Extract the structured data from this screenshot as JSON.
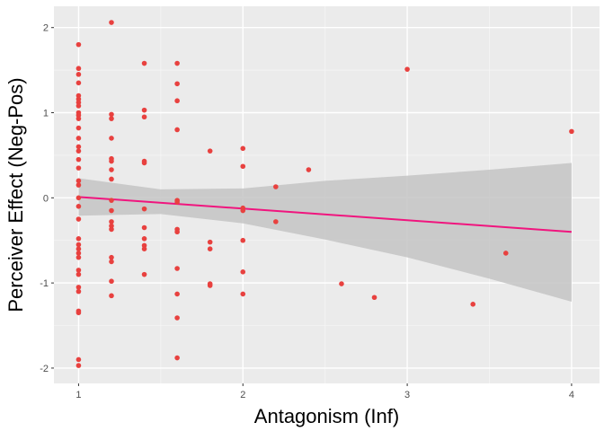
{
  "chart_data": {
    "type": "scatter",
    "title": "",
    "xlabel": "Antagonism (Inf)",
    "ylabel": "Perceiver Effect (Neg-Pos)",
    "xlim": [
      0.85,
      4.17
    ],
    "ylim": [
      -2.18,
      2.25
    ],
    "x_ticks": [
      1,
      2,
      3,
      4
    ],
    "y_ticks": [
      -2,
      -1,
      0,
      1,
      2
    ],
    "grid": true,
    "legend": "none",
    "colors": {
      "panel": "#ebebeb",
      "grid_major": "#ffffff",
      "grid_minor": "#f5f5f5",
      "point": "#e8413f",
      "fit_line": "#f0157e",
      "ribbon": "#c4c4c4"
    },
    "points": [
      {
        "x": 1.0,
        "y": 1.8
      },
      {
        "x": 1.0,
        "y": 1.52
      },
      {
        "x": 1.0,
        "y": 1.45
      },
      {
        "x": 1.0,
        "y": 1.35
      },
      {
        "x": 1.0,
        "y": 1.2
      },
      {
        "x": 1.0,
        "y": 1.16
      },
      {
        "x": 1.0,
        "y": 1.12
      },
      {
        "x": 1.0,
        "y": 1.08
      },
      {
        "x": 1.0,
        "y": 1.0
      },
      {
        "x": 1.0,
        "y": 0.97
      },
      {
        "x": 1.0,
        "y": 0.93
      },
      {
        "x": 1.0,
        "y": 0.82
      },
      {
        "x": 1.0,
        "y": 0.7
      },
      {
        "x": 1.0,
        "y": 0.6
      },
      {
        "x": 1.0,
        "y": 0.55
      },
      {
        "x": 1.0,
        "y": 0.45
      },
      {
        "x": 1.0,
        "y": 0.35
      },
      {
        "x": 1.0,
        "y": 0.2
      },
      {
        "x": 1.0,
        "y": 0.15
      },
      {
        "x": 1.0,
        "y": 0.0
      },
      {
        "x": 1.0,
        "y": -0.1
      },
      {
        "x": 1.0,
        "y": -0.25
      },
      {
        "x": 1.0,
        "y": -0.48
      },
      {
        "x": 1.0,
        "y": -0.55
      },
      {
        "x": 1.0,
        "y": -0.6
      },
      {
        "x": 1.0,
        "y": -0.65
      },
      {
        "x": 1.0,
        "y": -0.7
      },
      {
        "x": 1.0,
        "y": -0.85
      },
      {
        "x": 1.0,
        "y": -0.9
      },
      {
        "x": 1.0,
        "y": -1.05
      },
      {
        "x": 1.0,
        "y": -1.1
      },
      {
        "x": 1.0,
        "y": -1.33
      },
      {
        "x": 1.0,
        "y": -1.35
      },
      {
        "x": 1.0,
        "y": -1.9
      },
      {
        "x": 1.0,
        "y": -1.97
      },
      {
        "x": 1.2,
        "y": 2.06
      },
      {
        "x": 1.2,
        "y": 0.98
      },
      {
        "x": 1.2,
        "y": 0.93
      },
      {
        "x": 1.2,
        "y": 0.7
      },
      {
        "x": 1.2,
        "y": 0.46
      },
      {
        "x": 1.2,
        "y": 0.43
      },
      {
        "x": 1.2,
        "y": 0.33
      },
      {
        "x": 1.2,
        "y": 0.22
      },
      {
        "x": 1.2,
        "y": -0.03
      },
      {
        "x": 1.2,
        "y": -0.15
      },
      {
        "x": 1.2,
        "y": -0.28
      },
      {
        "x": 1.2,
        "y": -0.33
      },
      {
        "x": 1.2,
        "y": -0.37
      },
      {
        "x": 1.2,
        "y": -0.7
      },
      {
        "x": 1.2,
        "y": -0.75
      },
      {
        "x": 1.2,
        "y": -0.98
      },
      {
        "x": 1.2,
        "y": -1.15
      },
      {
        "x": 1.4,
        "y": 1.58
      },
      {
        "x": 1.4,
        "y": 1.03
      },
      {
        "x": 1.4,
        "y": 0.95
      },
      {
        "x": 1.4,
        "y": 0.43
      },
      {
        "x": 1.4,
        "y": 0.41
      },
      {
        "x": 1.4,
        "y": -0.13
      },
      {
        "x": 1.4,
        "y": -0.35
      },
      {
        "x": 1.4,
        "y": -0.48
      },
      {
        "x": 1.4,
        "y": -0.56
      },
      {
        "x": 1.4,
        "y": -0.6
      },
      {
        "x": 1.4,
        "y": -0.9
      },
      {
        "x": 1.6,
        "y": 1.58
      },
      {
        "x": 1.6,
        "y": 1.34
      },
      {
        "x": 1.6,
        "y": 1.14
      },
      {
        "x": 1.6,
        "y": 0.8
      },
      {
        "x": 1.6,
        "y": -0.03
      },
      {
        "x": 1.6,
        "y": -0.05
      },
      {
        "x": 1.6,
        "y": -0.37
      },
      {
        "x": 1.6,
        "y": -0.4
      },
      {
        "x": 1.6,
        "y": -0.83
      },
      {
        "x": 1.6,
        "y": -1.13
      },
      {
        "x": 1.6,
        "y": -1.41
      },
      {
        "x": 1.6,
        "y": -1.88
      },
      {
        "x": 1.8,
        "y": 0.55
      },
      {
        "x": 1.8,
        "y": -0.52
      },
      {
        "x": 1.8,
        "y": -0.6
      },
      {
        "x": 1.8,
        "y": -1.01
      },
      {
        "x": 1.8,
        "y": -1.03
      },
      {
        "x": 2.0,
        "y": 0.58
      },
      {
        "x": 2.0,
        "y": 0.37
      },
      {
        "x": 2.0,
        "y": -0.12
      },
      {
        "x": 2.0,
        "y": -0.15
      },
      {
        "x": 2.0,
        "y": -0.5
      },
      {
        "x": 2.0,
        "y": -0.87
      },
      {
        "x": 2.0,
        "y": -1.13
      },
      {
        "x": 2.2,
        "y": 0.13
      },
      {
        "x": 2.2,
        "y": -0.28
      },
      {
        "x": 2.4,
        "y": 0.33
      },
      {
        "x": 2.6,
        "y": -1.01
      },
      {
        "x": 2.8,
        "y": -1.17
      },
      {
        "x": 3.0,
        "y": 1.51
      },
      {
        "x": 3.4,
        "y": -1.25
      },
      {
        "x": 3.6,
        "y": -0.65
      },
      {
        "x": 4.0,
        "y": 0.78
      }
    ],
    "fit_line": [
      {
        "x": 1.0,
        "y": 0.01
      },
      {
        "x": 4.0,
        "y": -0.4
      }
    ],
    "confidence_band": [
      {
        "x": 1.0,
        "lower": -0.21,
        "upper": 0.23
      },
      {
        "x": 1.5,
        "lower": -0.19,
        "upper": 0.1
      },
      {
        "x": 2.0,
        "lower": -0.3,
        "upper": 0.11
      },
      {
        "x": 2.5,
        "lower": -0.49,
        "upper": 0.2
      },
      {
        "x": 3.0,
        "lower": -0.7,
        "upper": 0.26
      },
      {
        "x": 3.5,
        "lower": -0.95,
        "upper": 0.33
      },
      {
        "x": 4.0,
        "lower": -1.22,
        "upper": 0.41
      }
    ]
  }
}
